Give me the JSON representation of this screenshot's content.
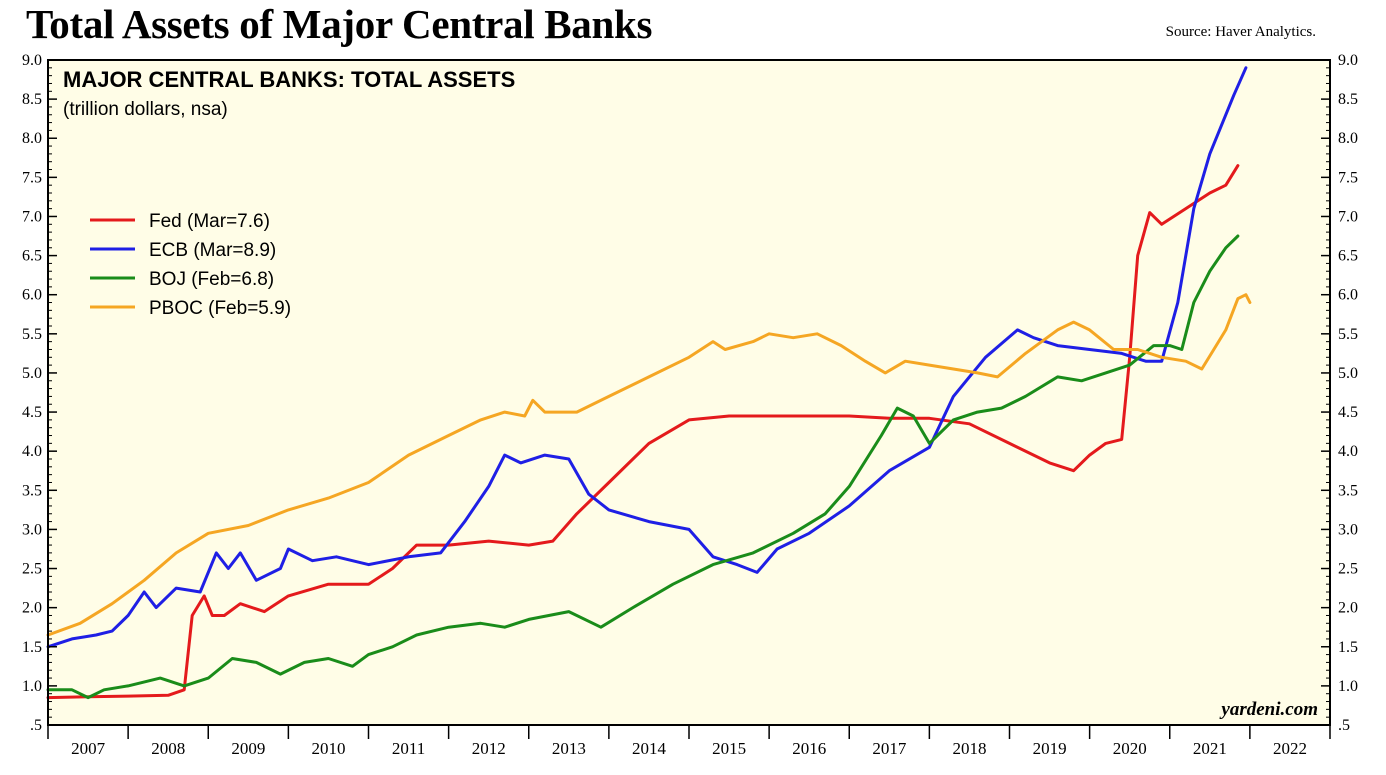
{
  "page": {
    "title": "Total Assets of Major Central Banks",
    "source": "Source: Haver Analytics."
  },
  "chart_data": {
    "type": "line",
    "title": "MAJOR CENTRAL BANKS: TOTAL ASSETS",
    "subtitle": "(trillion dollars, nsa)",
    "credit": "yardeni.com",
    "xlabel": "",
    "ylabel": "",
    "ylim": [
      0.5,
      9.0
    ],
    "xlim": [
      2007.0,
      2023.0
    ],
    "y_ticks": [
      ".5",
      "1.0",
      "1.5",
      "2.0",
      "2.5",
      "3.0",
      "3.5",
      "4.0",
      "4.5",
      "5.0",
      "5.5",
      "6.0",
      "6.5",
      "7.0",
      "7.5",
      "8.0",
      "8.5",
      "9.0"
    ],
    "x_tick_labels": [
      "2007",
      "2008",
      "2009",
      "2010",
      "2011",
      "2012",
      "2013",
      "2014",
      "2015",
      "2016",
      "2017",
      "2018",
      "2019",
      "2020",
      "2021",
      "2022"
    ],
    "background": "#fffde7",
    "legend_position": "upper-left",
    "series": [
      {
        "name": "Fed (Mar=7.6)",
        "color": "#e41a1c",
        "points": [
          [
            2007.0,
            0.85
          ],
          [
            2007.5,
            0.86
          ],
          [
            2008.0,
            0.87
          ],
          [
            2008.5,
            0.88
          ],
          [
            2008.7,
            0.95
          ],
          [
            2008.8,
            1.9
          ],
          [
            2008.95,
            2.15
          ],
          [
            2009.05,
            1.9
          ],
          [
            2009.2,
            1.9
          ],
          [
            2009.4,
            2.05
          ],
          [
            2009.7,
            1.95
          ],
          [
            2010.0,
            2.15
          ],
          [
            2010.5,
            2.3
          ],
          [
            2011.0,
            2.3
          ],
          [
            2011.3,
            2.5
          ],
          [
            2011.6,
            2.8
          ],
          [
            2012.0,
            2.8
          ],
          [
            2012.5,
            2.85
          ],
          [
            2013.0,
            2.8
          ],
          [
            2013.3,
            2.85
          ],
          [
            2013.6,
            3.2
          ],
          [
            2014.0,
            3.6
          ],
          [
            2014.5,
            4.1
          ],
          [
            2015.0,
            4.4
          ],
          [
            2015.5,
            4.45
          ],
          [
            2016.0,
            4.45
          ],
          [
            2016.5,
            4.45
          ],
          [
            2017.0,
            4.45
          ],
          [
            2017.5,
            4.42
          ],
          [
            2018.0,
            4.42
          ],
          [
            2018.5,
            4.35
          ],
          [
            2019.0,
            4.1
          ],
          [
            2019.5,
            3.85
          ],
          [
            2019.8,
            3.75
          ],
          [
            2020.0,
            3.95
          ],
          [
            2020.2,
            4.1
          ],
          [
            2020.4,
            4.15
          ],
          [
            2020.5,
            5.2
          ],
          [
            2020.6,
            6.5
          ],
          [
            2020.75,
            7.05
          ],
          [
            2020.9,
            6.9
          ],
          [
            2021.2,
            7.1
          ],
          [
            2021.5,
            7.3
          ],
          [
            2021.7,
            7.4
          ],
          [
            2021.85,
            7.65
          ]
        ]
      },
      {
        "name": "ECB (Mar=8.9)",
        "color": "#1f1fe5",
        "points": [
          [
            2007.0,
            1.5
          ],
          [
            2007.3,
            1.6
          ],
          [
            2007.6,
            1.65
          ],
          [
            2007.8,
            1.7
          ],
          [
            2008.0,
            1.9
          ],
          [
            2008.2,
            2.2
          ],
          [
            2008.35,
            2.0
          ],
          [
            2008.6,
            2.25
          ],
          [
            2008.9,
            2.2
          ],
          [
            2009.1,
            2.7
          ],
          [
            2009.25,
            2.5
          ],
          [
            2009.4,
            2.7
          ],
          [
            2009.6,
            2.35
          ],
          [
            2009.9,
            2.5
          ],
          [
            2010.0,
            2.75
          ],
          [
            2010.3,
            2.6
          ],
          [
            2010.6,
            2.65
          ],
          [
            2011.0,
            2.55
          ],
          [
            2011.5,
            2.65
          ],
          [
            2011.9,
            2.7
          ],
          [
            2012.2,
            3.1
          ],
          [
            2012.5,
            3.55
          ],
          [
            2012.7,
            3.95
          ],
          [
            2012.9,
            3.85
          ],
          [
            2013.2,
            3.95
          ],
          [
            2013.5,
            3.9
          ],
          [
            2013.75,
            3.45
          ],
          [
            2014.0,
            3.25
          ],
          [
            2014.5,
            3.1
          ],
          [
            2015.0,
            3.0
          ],
          [
            2015.3,
            2.65
          ],
          [
            2015.6,
            2.55
          ],
          [
            2015.85,
            2.45
          ],
          [
            2016.1,
            2.75
          ],
          [
            2016.5,
            2.95
          ],
          [
            2017.0,
            3.3
          ],
          [
            2017.5,
            3.75
          ],
          [
            2018.0,
            4.05
          ],
          [
            2018.3,
            4.7
          ],
          [
            2018.7,
            5.2
          ],
          [
            2019.1,
            5.55
          ],
          [
            2019.3,
            5.45
          ],
          [
            2019.6,
            5.35
          ],
          [
            2020.0,
            5.3
          ],
          [
            2020.4,
            5.25
          ],
          [
            2020.7,
            5.15
          ],
          [
            2020.9,
            5.15
          ],
          [
            2021.1,
            5.9
          ],
          [
            2021.3,
            7.1
          ],
          [
            2021.5,
            7.8
          ],
          [
            2021.8,
            8.55
          ],
          [
            2021.95,
            8.9
          ]
        ]
      },
      {
        "name": "BOJ (Feb=6.8)",
        "color": "#1a8c1a",
        "points": [
          [
            2007.0,
            0.95
          ],
          [
            2007.3,
            0.95
          ],
          [
            2007.5,
            0.85
          ],
          [
            2007.7,
            0.95
          ],
          [
            2008.0,
            1.0
          ],
          [
            2008.4,
            1.1
          ],
          [
            2008.7,
            1.0
          ],
          [
            2009.0,
            1.1
          ],
          [
            2009.3,
            1.35
          ],
          [
            2009.6,
            1.3
          ],
          [
            2009.9,
            1.15
          ],
          [
            2010.2,
            1.3
          ],
          [
            2010.5,
            1.35
          ],
          [
            2010.8,
            1.25
          ],
          [
            2011.0,
            1.4
          ],
          [
            2011.3,
            1.5
          ],
          [
            2011.6,
            1.65
          ],
          [
            2012.0,
            1.75
          ],
          [
            2012.4,
            1.8
          ],
          [
            2012.7,
            1.75
          ],
          [
            2013.0,
            1.85
          ],
          [
            2013.5,
            1.95
          ],
          [
            2013.9,
            1.75
          ],
          [
            2014.3,
            2.0
          ],
          [
            2014.8,
            2.3
          ],
          [
            2015.3,
            2.55
          ],
          [
            2015.8,
            2.7
          ],
          [
            2016.3,
            2.95
          ],
          [
            2016.7,
            3.2
          ],
          [
            2017.0,
            3.55
          ],
          [
            2017.4,
            4.2
          ],
          [
            2017.6,
            4.55
          ],
          [
            2017.8,
            4.45
          ],
          [
            2018.0,
            4.1
          ],
          [
            2018.3,
            4.4
          ],
          [
            2018.6,
            4.5
          ],
          [
            2018.9,
            4.55
          ],
          [
            2019.2,
            4.7
          ],
          [
            2019.6,
            4.95
          ],
          [
            2019.9,
            4.9
          ],
          [
            2020.2,
            5.0
          ],
          [
            2020.5,
            5.1
          ],
          [
            2020.8,
            5.35
          ],
          [
            2021.0,
            5.35
          ],
          [
            2021.15,
            5.3
          ],
          [
            2021.3,
            5.9
          ],
          [
            2021.5,
            6.3
          ],
          [
            2021.7,
            6.6
          ],
          [
            2021.85,
            6.75
          ]
        ]
      },
      {
        "name": "PBOC (Feb=5.9)",
        "color": "#f5a623",
        "points": [
          [
            2007.0,
            1.65
          ],
          [
            2007.4,
            1.8
          ],
          [
            2007.8,
            2.05
          ],
          [
            2008.2,
            2.35
          ],
          [
            2008.6,
            2.7
          ],
          [
            2009.0,
            2.95
          ],
          [
            2009.5,
            3.05
          ],
          [
            2010.0,
            3.25
          ],
          [
            2010.5,
            3.4
          ],
          [
            2011.0,
            3.6
          ],
          [
            2011.5,
            3.95
          ],
          [
            2012.0,
            4.2
          ],
          [
            2012.4,
            4.4
          ],
          [
            2012.7,
            4.5
          ],
          [
            2012.95,
            4.45
          ],
          [
            2013.05,
            4.65
          ],
          [
            2013.2,
            4.5
          ],
          [
            2013.6,
            4.5
          ],
          [
            2014.0,
            4.7
          ],
          [
            2014.5,
            4.95
          ],
          [
            2015.0,
            5.2
          ],
          [
            2015.3,
            5.4
          ],
          [
            2015.45,
            5.3
          ],
          [
            2015.8,
            5.4
          ],
          [
            2016.0,
            5.5
          ],
          [
            2016.3,
            5.45
          ],
          [
            2016.6,
            5.5
          ],
          [
            2016.9,
            5.35
          ],
          [
            2017.2,
            5.15
          ],
          [
            2017.45,
            5.0
          ],
          [
            2017.7,
            5.15
          ],
          [
            2018.0,
            5.1
          ],
          [
            2018.3,
            5.05
          ],
          [
            2018.6,
            5.0
          ],
          [
            2018.85,
            4.95
          ],
          [
            2019.2,
            5.25
          ],
          [
            2019.6,
            5.55
          ],
          [
            2019.8,
            5.65
          ],
          [
            2020.0,
            5.55
          ],
          [
            2020.3,
            5.3
          ],
          [
            2020.6,
            5.3
          ],
          [
            2020.9,
            5.2
          ],
          [
            2021.2,
            5.15
          ],
          [
            2021.4,
            5.05
          ],
          [
            2021.55,
            5.3
          ],
          [
            2021.7,
            5.55
          ],
          [
            2021.85,
            5.95
          ],
          [
            2021.95,
            6.0
          ],
          [
            2022.0,
            5.9
          ]
        ]
      }
    ]
  }
}
